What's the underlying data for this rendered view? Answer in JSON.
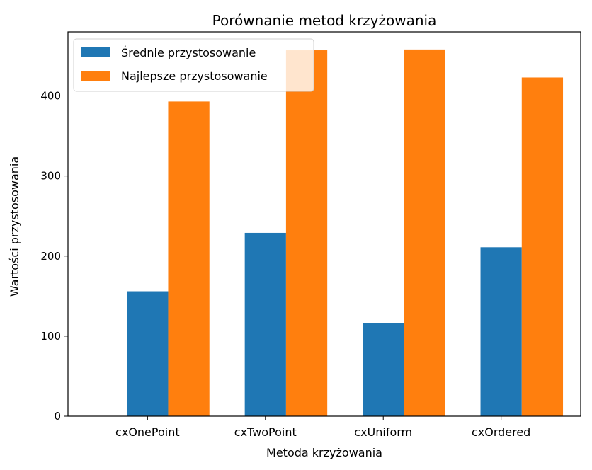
{
  "chart_data": {
    "type": "bar",
    "title": "Porównanie metod krzyżowania",
    "xlabel": "Metoda krzyżowania",
    "ylabel": "Wartości przystosowania",
    "categories": [
      "cxOnePoint",
      "cxTwoPoint",
      "cxUniform",
      "cxOrdered"
    ],
    "series": [
      {
        "name": "Średnie przystosowanie",
        "color": "#1f77b4",
        "values": [
          156,
          229,
          116,
          211
        ]
      },
      {
        "name": "Najlepsze przystosowanie",
        "color": "#ff7f0e",
        "values": [
          393,
          457,
          458,
          423
        ]
      }
    ],
    "ylim": [
      0,
      480
    ],
    "yticks": [
      0,
      100,
      200,
      300,
      400
    ],
    "grid": false,
    "legend_position": "top-left"
  }
}
